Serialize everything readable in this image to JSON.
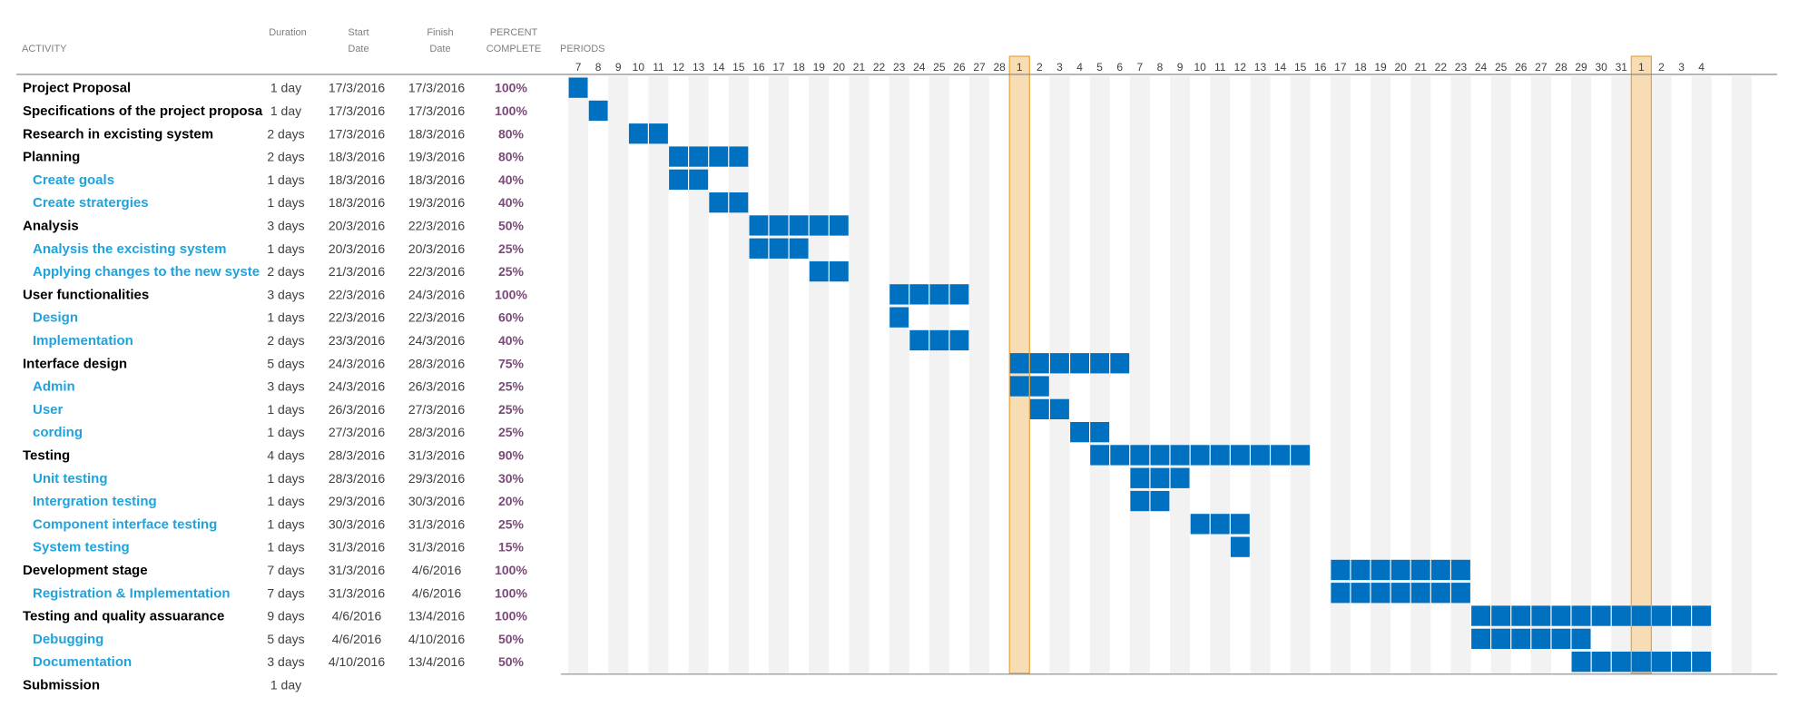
{
  "headers": {
    "activity": "ACTIVITY",
    "duration": "Duration",
    "start": [
      "Start",
      "Date"
    ],
    "finish": [
      "Finish",
      "Date"
    ],
    "percent": [
      "PERCENT",
      "COMPLETE"
    ],
    "periods": "PERIODS"
  },
  "colors": {
    "bar": "#0070c0",
    "shade": "#f2f2f2",
    "highlight_fill": "#f8dcb4",
    "highlight_line": "#e8a43c",
    "main_text": "#000000",
    "sub_text": "#1fa3dd",
    "percent_text": "#7a4b78"
  },
  "chart_data": {
    "type": "gantt",
    "period_labels": [
      "7",
      "8",
      "9",
      "10",
      "11",
      "12",
      "13",
      "14",
      "15",
      "16",
      "17",
      "18",
      "19",
      "20",
      "21",
      "22",
      "23",
      "24",
      "25",
      "26",
      "27",
      "28",
      "1",
      "2",
      "3",
      "4",
      "5",
      "6",
      "7",
      "8",
      "9",
      "10",
      "11",
      "12",
      "13",
      "14",
      "15",
      "16",
      "17",
      "18",
      "19",
      "20",
      "21",
      "22",
      "23",
      "24",
      "25",
      "26",
      "27",
      "28",
      "29",
      "30",
      "31",
      "1",
      "2",
      "3",
      "4"
    ],
    "highlighted_periods": [
      22,
      53
    ],
    "rows": [
      {
        "activity": "Project Proposal",
        "level": "main",
        "duration": "1 day",
        "start": "17/3/2016",
        "finish": "17/3/2016",
        "percent": "100%",
        "bar": [
          0,
          1
        ]
      },
      {
        "activity": "Specifications of the project proposa",
        "level": "main",
        "duration": "1 day",
        "start": "17/3/2016",
        "finish": "17/3/2016",
        "percent": "100%",
        "bar": [
          1,
          1
        ]
      },
      {
        "activity": "Research in excisting system",
        "level": "main",
        "duration": "2 days",
        "start": "17/3/2016",
        "finish": "18/3/2016",
        "percent": "80%",
        "bar": [
          3,
          2
        ]
      },
      {
        "activity": "Planning",
        "level": "main",
        "duration": "2 days",
        "start": "18/3/2016",
        "finish": "19/3/2016",
        "percent": "80%",
        "bar": [
          5,
          4
        ]
      },
      {
        "activity": "Create goals",
        "level": "sub",
        "duration": "1 days",
        "start": "18/3/2016",
        "finish": "18/3/2016",
        "percent": "40%",
        "bar": [
          5,
          2
        ]
      },
      {
        "activity": "Create stratergies",
        "level": "sub",
        "duration": "1 days",
        "start": "18/3/2016",
        "finish": "19/3/2016",
        "percent": "40%",
        "bar": [
          7,
          2
        ]
      },
      {
        "activity": "Analysis",
        "level": "main",
        "duration": "3 days",
        "start": "20/3/2016",
        "finish": "22/3/2016",
        "percent": "50%",
        "bar": [
          9,
          5
        ]
      },
      {
        "activity": "Analysis the excisting system",
        "level": "sub",
        "duration": "1 days",
        "start": "20/3/2016",
        "finish": "20/3/2016",
        "percent": "25%",
        "bar": [
          9,
          3
        ]
      },
      {
        "activity": "Applying changes to the new syste",
        "level": "sub",
        "duration": "2 days",
        "start": "21/3/2016",
        "finish": "22/3/2016",
        "percent": "25%",
        "bar": [
          12,
          2
        ]
      },
      {
        "activity": "User functionalities",
        "level": "main",
        "duration": "3 days",
        "start": "22/3/2016",
        "finish": "24/3/2016",
        "percent": "100%",
        "bar": [
          16,
          4
        ]
      },
      {
        "activity": "Design",
        "level": "sub",
        "duration": "1 days",
        "start": "22/3/2016",
        "finish": "22/3/2016",
        "percent": "60%",
        "bar": [
          16,
          1
        ]
      },
      {
        "activity": "Implementation",
        "level": "sub",
        "duration": "2 days",
        "start": "23/3/2016",
        "finish": "24/3/2016",
        "percent": "40%",
        "bar": [
          17,
          3
        ]
      },
      {
        "activity": "Interface design",
        "level": "main",
        "duration": "5 days",
        "start": "24/3/2016",
        "finish": "28/3/2016",
        "percent": "75%",
        "bar": [
          22,
          6
        ]
      },
      {
        "activity": "Admin",
        "level": "sub",
        "duration": "3  days",
        "start": "24/3/2016",
        "finish": "26/3/2016",
        "percent": "25%",
        "bar": [
          22,
          2
        ]
      },
      {
        "activity": "User",
        "level": "sub",
        "duration": "1 days",
        "start": "26/3/2016",
        "finish": "27/3/2016",
        "percent": "25%",
        "bar": [
          23,
          2
        ]
      },
      {
        "activity": "cording",
        "level": "sub",
        "duration": "1 days",
        "start": "27/3/2016",
        "finish": "28/3/2016",
        "percent": "25%",
        "bar": [
          25,
          2
        ]
      },
      {
        "activity": "Testing",
        "level": "main",
        "duration": "4 days",
        "start": "28/3/2016",
        "finish": "31/3/2016",
        "percent": "90%",
        "bar": [
          26,
          11
        ]
      },
      {
        "activity": "Unit testing",
        "level": "sub",
        "duration": "1 days",
        "start": "28/3/2016",
        "finish": "29/3/2016",
        "percent": "30%",
        "bar": [
          28,
          3
        ]
      },
      {
        "activity": "Intergration testing",
        "level": "sub",
        "duration": "1 days",
        "start": "29/3/2016",
        "finish": "30/3/2016",
        "percent": "20%",
        "bar": [
          28,
          2
        ]
      },
      {
        "activity": "Component interface testing",
        "level": "sub",
        "duration": "1 days",
        "start": "30/3/2016",
        "finish": "31/3/2016",
        "percent": "25%",
        "bar": [
          31,
          3
        ]
      },
      {
        "activity": "System testing",
        "level": "sub",
        "duration": "1 days",
        "start": "31/3/2016",
        "finish": "31/3/2016",
        "percent": "15%",
        "bar": [
          33,
          1
        ]
      },
      {
        "activity": "Development stage",
        "level": "main",
        "duration": "7 days",
        "start": "31/3/2016",
        "finish": "4/6/2016",
        "percent": "100%",
        "bar": [
          38,
          7
        ]
      },
      {
        "activity": "Registration & Implementation",
        "level": "sub",
        "duration": "7 days",
        "start": "31/3/2016",
        "finish": "4/6/2016",
        "percent": "100%",
        "bar": [
          38,
          7
        ]
      },
      {
        "activity": "Testing and quality assuarance",
        "level": "main",
        "duration": "9  days",
        "start": "4/6/2016",
        "finish": "13/4/2016",
        "percent": "100%",
        "bar": [
          45,
          12
        ]
      },
      {
        "activity": "Debugging",
        "level": "sub",
        "duration": "5 days",
        "start": "4/6/2016",
        "finish": "4/10/2016",
        "percent": "50%",
        "bar": [
          45,
          6
        ]
      },
      {
        "activity": "Documentation",
        "level": "sub",
        "duration": "3 days",
        "start": "4/10/2016",
        "finish": "13/4/2016",
        "percent": "50%",
        "bar": [
          50,
          7
        ]
      },
      {
        "activity": "Submission",
        "level": "main",
        "duration": "1 day",
        "start": "",
        "finish": "",
        "percent": "",
        "bar": null
      }
    ]
  }
}
